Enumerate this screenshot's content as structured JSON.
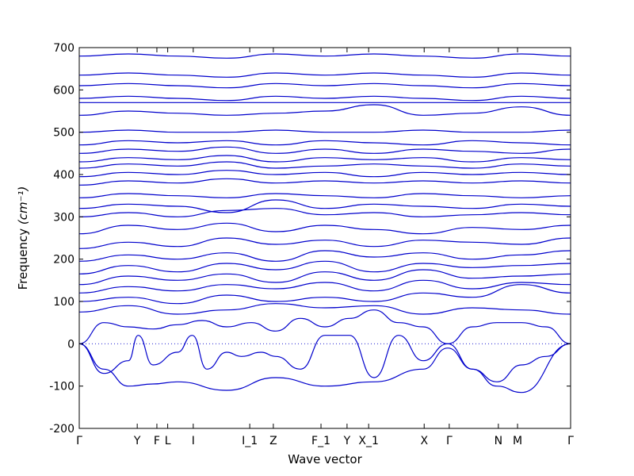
{
  "chart_data": {
    "type": "line",
    "xlabel": "Wave vector",
    "ylabel": "Frequency",
    "ylabel_unit": "(cm⁻¹)",
    "ylim": [
      -200,
      700
    ],
    "yticks": [
      -200,
      -100,
      0,
      100,
      200,
      300,
      400,
      500,
      600,
      700
    ],
    "zero_line": "dotted",
    "line_color": "#0000cc",
    "x_points": [
      {
        "label": "Γ",
        "x": 0.0
      },
      {
        "label": "Y",
        "x": 0.118
      },
      {
        "label": "F",
        "x": 0.158
      },
      {
        "label": "L",
        "x": 0.18
      },
      {
        "label": "I",
        "x": 0.232
      },
      {
        "label": "I_1",
        "x": 0.347
      },
      {
        "label": "Z",
        "x": 0.395
      },
      {
        "label": "F_1",
        "x": 0.492
      },
      {
        "label": "Y",
        "x": 0.545
      },
      {
        "label": "X_1",
        "x": 0.589
      },
      {
        "label": "X",
        "x": 0.702
      },
      {
        "label": "Γ",
        "x": 0.753
      },
      {
        "label": "N",
        "x": 0.853
      },
      {
        "label": "M",
        "x": 0.892
      },
      {
        "label": "Γ",
        "x": 1.0
      }
    ],
    "series": [
      {
        "x": [
          0,
          0.05,
          0.1,
          0.15,
          0.2,
          0.3,
          0.4,
          0.5,
          0.6,
          0.7,
          0.75,
          0.8,
          0.85,
          0.9,
          1.0
        ],
        "y": [
          0,
          -60,
          -100,
          -95,
          -90,
          -110,
          -80,
          -100,
          -90,
          -60,
          -10,
          -60,
          -100,
          -115,
          0
        ]
      },
      {
        "x": [
          0,
          0.05,
          0.1,
          0.12,
          0.15,
          0.2,
          0.23,
          0.26,
          0.3,
          0.33,
          0.37,
          0.4,
          0.45,
          0.5,
          0.55,
          0.6,
          0.65,
          0.7,
          0.75,
          0.8,
          0.85,
          0.9,
          0.95,
          1.0
        ],
        "y": [
          0,
          -70,
          -40,
          20,
          -50,
          -20,
          20,
          -60,
          -20,
          -30,
          -20,
          -30,
          -60,
          20,
          20,
          -80,
          20,
          -40,
          0,
          -60,
          -90,
          -50,
          -30,
          0
        ]
      },
      {
        "x": [
          0,
          0.05,
          0.1,
          0.15,
          0.2,
          0.25,
          0.3,
          0.35,
          0.4,
          0.45,
          0.5,
          0.55,
          0.6,
          0.65,
          0.7,
          0.75,
          0.8,
          0.85,
          0.9,
          0.95,
          1.0
        ],
        "y": [
          0,
          50,
          40,
          35,
          45,
          55,
          40,
          50,
          30,
          60,
          40,
          60,
          80,
          50,
          40,
          0,
          40,
          50,
          50,
          40,
          0
        ]
      },
      {
        "x": [
          0,
          0.1,
          0.2,
          0.3,
          0.4,
          0.5,
          0.6,
          0.7,
          0.8,
          0.9,
          1.0
        ],
        "y": [
          75,
          90,
          70,
          80,
          95,
          85,
          90,
          70,
          85,
          80,
          70
        ]
      },
      {
        "x": [
          0,
          0.1,
          0.2,
          0.3,
          0.4,
          0.5,
          0.6,
          0.7,
          0.8,
          0.9,
          1.0
        ],
        "y": [
          100,
          110,
          95,
          115,
          100,
          110,
          100,
          120,
          110,
          140,
          120
        ]
      },
      {
        "x": [
          0,
          0.1,
          0.2,
          0.3,
          0.4,
          0.5,
          0.6,
          0.7,
          0.8,
          0.9,
          1.0
        ],
        "y": [
          120,
          135,
          125,
          140,
          130,
          145,
          125,
          150,
          130,
          145,
          140
        ]
      },
      {
        "x": [
          0,
          0.1,
          0.2,
          0.3,
          0.4,
          0.5,
          0.6,
          0.7,
          0.8,
          0.9,
          1.0
        ],
        "y": [
          140,
          160,
          150,
          165,
          145,
          170,
          150,
          175,
          155,
          160,
          165
        ]
      },
      {
        "x": [
          0,
          0.1,
          0.2,
          0.3,
          0.4,
          0.5,
          0.6,
          0.7,
          0.8,
          0.9,
          1.0
        ],
        "y": [
          165,
          185,
          170,
          190,
          175,
          195,
          170,
          190,
          180,
          185,
          190
        ]
      },
      {
        "x": [
          0,
          0.1,
          0.2,
          0.3,
          0.4,
          0.5,
          0.6,
          0.7,
          0.8,
          0.9,
          1.0
        ],
        "y": [
          195,
          210,
          200,
          215,
          195,
          220,
          205,
          215,
          200,
          210,
          220
        ]
      },
      {
        "x": [
          0,
          0.1,
          0.2,
          0.3,
          0.4,
          0.5,
          0.6,
          0.7,
          0.8,
          0.9,
          1.0
        ],
        "y": [
          225,
          240,
          230,
          250,
          235,
          245,
          230,
          245,
          240,
          235,
          250
        ]
      },
      {
        "x": [
          0,
          0.1,
          0.2,
          0.3,
          0.4,
          0.5,
          0.6,
          0.7,
          0.8,
          0.9,
          1.0
        ],
        "y": [
          260,
          280,
          270,
          285,
          265,
          280,
          270,
          260,
          275,
          270,
          280
        ]
      },
      {
        "x": [
          0,
          0.1,
          0.2,
          0.3,
          0.4,
          0.5,
          0.6,
          0.7,
          0.8,
          0.9,
          1.0
        ],
        "y": [
          300,
          310,
          300,
          315,
          320,
          305,
          310,
          300,
          305,
          310,
          305
        ]
      },
      {
        "x": [
          0,
          0.1,
          0.2,
          0.3,
          0.4,
          0.5,
          0.6,
          0.7,
          0.8,
          0.9,
          1.0
        ],
        "y": [
          320,
          330,
          325,
          310,
          340,
          320,
          330,
          325,
          320,
          330,
          325
        ]
      },
      {
        "x": [
          0,
          0.1,
          0.2,
          0.3,
          0.4,
          0.5,
          0.6,
          0.7,
          0.8,
          0.9,
          1.0
        ],
        "y": [
          345,
          355,
          350,
          345,
          355,
          350,
          345,
          355,
          350,
          345,
          350
        ]
      },
      {
        "x": [
          0,
          0.1,
          0.2,
          0.3,
          0.4,
          0.5,
          0.6,
          0.7,
          0.8,
          0.9,
          1.0
        ],
        "y": [
          375,
          385,
          380,
          390,
          380,
          385,
          380,
          385,
          380,
          385,
          380
        ]
      },
      {
        "x": [
          0,
          0.1,
          0.2,
          0.3,
          0.4,
          0.5,
          0.6,
          0.7,
          0.8,
          0.9,
          1.0
        ],
        "y": [
          395,
          405,
          400,
          410,
          400,
          405,
          395,
          405,
          400,
          405,
          400
        ]
      },
      {
        "x": [
          0,
          0.1,
          0.2,
          0.3,
          0.4,
          0.5,
          0.6,
          0.7,
          0.8,
          0.9,
          1.0
        ],
        "y": [
          415,
          425,
          420,
          430,
          415,
          420,
          425,
          420,
          415,
          425,
          420
        ]
      },
      {
        "x": [
          0,
          0.1,
          0.2,
          0.3,
          0.4,
          0.5,
          0.6,
          0.7,
          0.8,
          0.9,
          1.0
        ],
        "y": [
          430,
          440,
          435,
          445,
          430,
          440,
          435,
          440,
          430,
          440,
          435
        ]
      },
      {
        "x": [
          0,
          0.1,
          0.2,
          0.3,
          0.4,
          0.5,
          0.6,
          0.7,
          0.8,
          0.9,
          1.0
        ],
        "y": [
          450,
          460,
          455,
          465,
          450,
          460,
          450,
          460,
          455,
          450,
          460
        ]
      },
      {
        "x": [
          0,
          0.1,
          0.2,
          0.3,
          0.4,
          0.5,
          0.6,
          0.7,
          0.8,
          0.9,
          1.0
        ],
        "y": [
          470,
          480,
          475,
          480,
          470,
          480,
          475,
          470,
          480,
          475,
          470
        ]
      },
      {
        "x": [
          0,
          0.1,
          0.2,
          0.3,
          0.4,
          0.5,
          0.6,
          0.7,
          0.8,
          0.9,
          1.0
        ],
        "y": [
          500,
          505,
          500,
          500,
          505,
          500,
          500,
          505,
          500,
          500,
          505
        ]
      },
      {
        "x": [
          0,
          0.1,
          0.2,
          0.3,
          0.4,
          0.5,
          0.6,
          0.7,
          0.8,
          0.9,
          1.0
        ],
        "y": [
          540,
          550,
          545,
          540,
          545,
          550,
          565,
          540,
          545,
          560,
          540
        ]
      },
      {
        "x": [
          0,
          0.1,
          0.2,
          0.3,
          0.4,
          0.5,
          0.6,
          0.7,
          0.8,
          0.9,
          1.0
        ],
        "y": [
          570,
          570,
          570,
          570,
          570,
          570,
          570,
          570,
          570,
          570,
          570
        ]
      },
      {
        "x": [
          0,
          0.1,
          0.2,
          0.3,
          0.4,
          0.5,
          0.6,
          0.7,
          0.8,
          0.9,
          1.0
        ],
        "y": [
          580,
          585,
          580,
          575,
          585,
          580,
          585,
          580,
          575,
          585,
          580
        ]
      },
      {
        "x": [
          0,
          0.1,
          0.2,
          0.3,
          0.4,
          0.5,
          0.6,
          0.7,
          0.8,
          0.9,
          1.0
        ],
        "y": [
          610,
          615,
          610,
          605,
          615,
          610,
          615,
          610,
          605,
          615,
          610
        ]
      },
      {
        "x": [
          0,
          0.1,
          0.2,
          0.3,
          0.4,
          0.5,
          0.6,
          0.7,
          0.8,
          0.9,
          1.0
        ],
        "y": [
          635,
          640,
          635,
          630,
          640,
          635,
          640,
          635,
          630,
          640,
          635
        ]
      },
      {
        "x": [
          0,
          0.1,
          0.2,
          0.3,
          0.4,
          0.5,
          0.6,
          0.7,
          0.8,
          0.9,
          1.0
        ],
        "y": [
          680,
          685,
          680,
          675,
          685,
          680,
          685,
          680,
          675,
          685,
          680
        ]
      }
    ]
  }
}
